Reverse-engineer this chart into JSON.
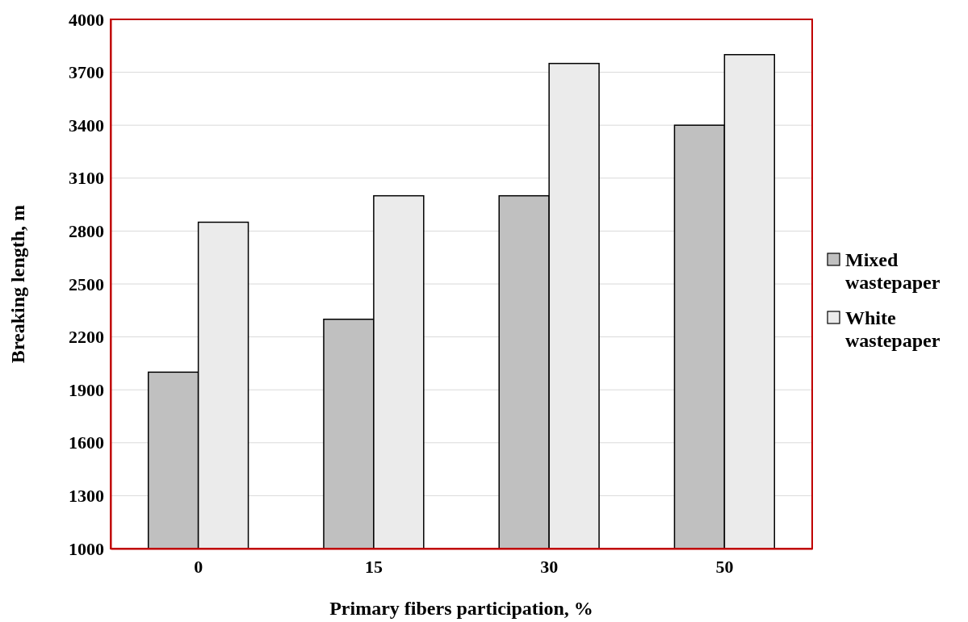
{
  "chart_data": {
    "type": "bar",
    "xlabel": "Primary fibers participation, %",
    "ylabel": "Breaking length, m",
    "categories": [
      "0",
      "15",
      "30",
      "50"
    ],
    "series": [
      {
        "name": "Mixed wastepaper",
        "color": "#c0c0c0",
        "values": [
          2000,
          2300,
          3000,
          3400
        ]
      },
      {
        "name": "White wastepaper",
        "color": "#ebebeb",
        "values": [
          2850,
          3000,
          3750,
          3800
        ]
      }
    ],
    "ylim": [
      1000,
      4000
    ],
    "yticks": [
      1000,
      1300,
      1600,
      1900,
      2200,
      2500,
      2800,
      3100,
      3400,
      3700,
      4000
    ],
    "grid": "y",
    "legend": "right"
  }
}
